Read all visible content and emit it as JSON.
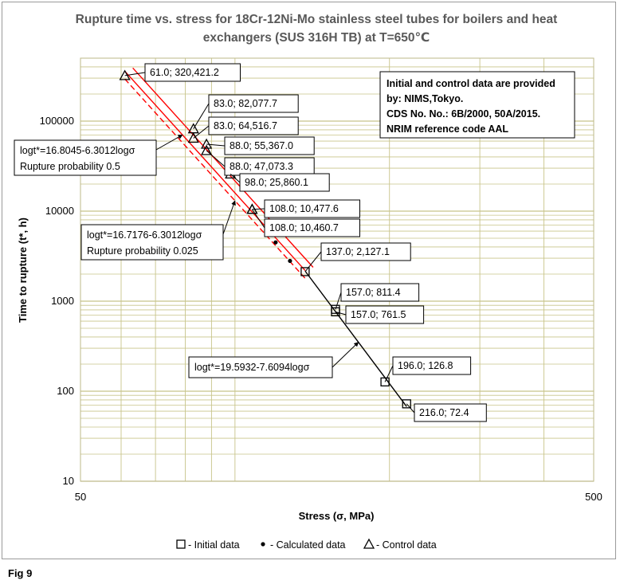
{
  "figure_label": "Fig 9",
  "note": {
    "lines": [
      "Initial and control data are provided",
      "by: NIMS,Tokyo.",
      "CDS No. No.: 6B/2000, 50A/2015.",
      "NRIM reference code AAL"
    ]
  },
  "chart_data": {
    "type": "scatter",
    "title_lines": [
      "Rupture time vs. stress for 18Cr-12Ni-Mo stainless steel tubes for boilers and heat",
      "exchangers (SUS 316H TB) at T=650℃"
    ],
    "xlabel": "Stress (σ, MPa)",
    "ylabel": "Time to rupture (t*, h)",
    "xscale": "log",
    "yscale": "log",
    "xlim": [
      50,
      500
    ],
    "ylim": [
      10,
      500000
    ],
    "x_ticks": [
      "50",
      "500"
    ],
    "y_ticks": [
      {
        "value": 10,
        "label": "10"
      },
      {
        "value": 100,
        "label": "100"
      },
      {
        "value": 1000,
        "label": "1000"
      },
      {
        "value": 10000,
        "label": "10000"
      },
      {
        "value": 100000,
        "label": "100000"
      }
    ],
    "grid": true,
    "legend_position": "bottom",
    "legend": [
      {
        "marker": "square",
        "label": "- Initial data"
      },
      {
        "marker": "dot",
        "label": "- Calculated data"
      },
      {
        "marker": "triangle",
        "label": "- Control data"
      }
    ],
    "series": [
      {
        "name": "Initial data",
        "marker": "square",
        "points": [
          {
            "x": 137.0,
            "y": 2127.1,
            "label": "137.0; 2,127.1"
          },
          {
            "x": 157.0,
            "y": 811.4,
            "label": "157.0; 811.4"
          },
          {
            "x": 157.0,
            "y": 761.5,
            "label": "157.0; 761.5"
          },
          {
            "x": 196.0,
            "y": 126.8,
            "label": "196.0; 126.8"
          },
          {
            "x": 216.0,
            "y": 72.4,
            "label": "216.0; 72.4"
          }
        ]
      },
      {
        "name": "Calculated data",
        "marker": "dot",
        "points": [
          {
            "x": 120.0,
            "y": 4500
          },
          {
            "x": 128.0,
            "y": 2800
          }
        ]
      },
      {
        "name": "Control data",
        "marker": "triangle",
        "points": [
          {
            "x": 61.0,
            "y": 320421.2,
            "label": "61.0; 320,421.2"
          },
          {
            "x": 83.0,
            "y": 82077.7,
            "label": "83.0; 82,077.7"
          },
          {
            "x": 83.0,
            "y": 64516.7,
            "label": "83.0; 64,516.7"
          },
          {
            "x": 88.0,
            "y": 55367.0,
            "label": "88.0; 55,367.0"
          },
          {
            "x": 88.0,
            "y": 47073.3,
            "label": "88.0; 47,073.3"
          },
          {
            "x": 98.0,
            "y": 25860.1,
            "label": "98.0; 25,860.1"
          },
          {
            "x": 108.0,
            "y": 10477.6,
            "label": "108.0; 10,477.6"
          },
          {
            "x": 108.0,
            "y": 10460.7,
            "label": "108.0; 10,460.7"
          }
        ]
      }
    ],
    "lines": [
      {
        "name": "Rupture probability 0.5",
        "equation": "logt*=16.8045-6.3012logσ",
        "caption": "Rupture probability 0.5",
        "a": 16.8045,
        "b": 6.3012,
        "x_range": [
          61,
          137
        ],
        "color": "#ff0000",
        "style": "solid",
        "arrow_x": 79
      },
      {
        "name": "Rupture probability 0.025",
        "equation": "logt*=16.7176-6.3012logσ",
        "caption": "Rupture probability 0.025",
        "a": 16.7176,
        "b": 6.3012,
        "x_range": [
          61,
          137
        ],
        "color": "#ff0000",
        "style": "dashed",
        "arrow_x": 100
      },
      {
        "name": "Fit initial data",
        "equation": "logt*=19.5932-7.6094logσ",
        "caption": "",
        "a": 19.5932,
        "b": 7.6094,
        "x_range": [
          137,
          216
        ],
        "color": "#000000",
        "style": "solid",
        "arrow_x": 174
      }
    ]
  }
}
